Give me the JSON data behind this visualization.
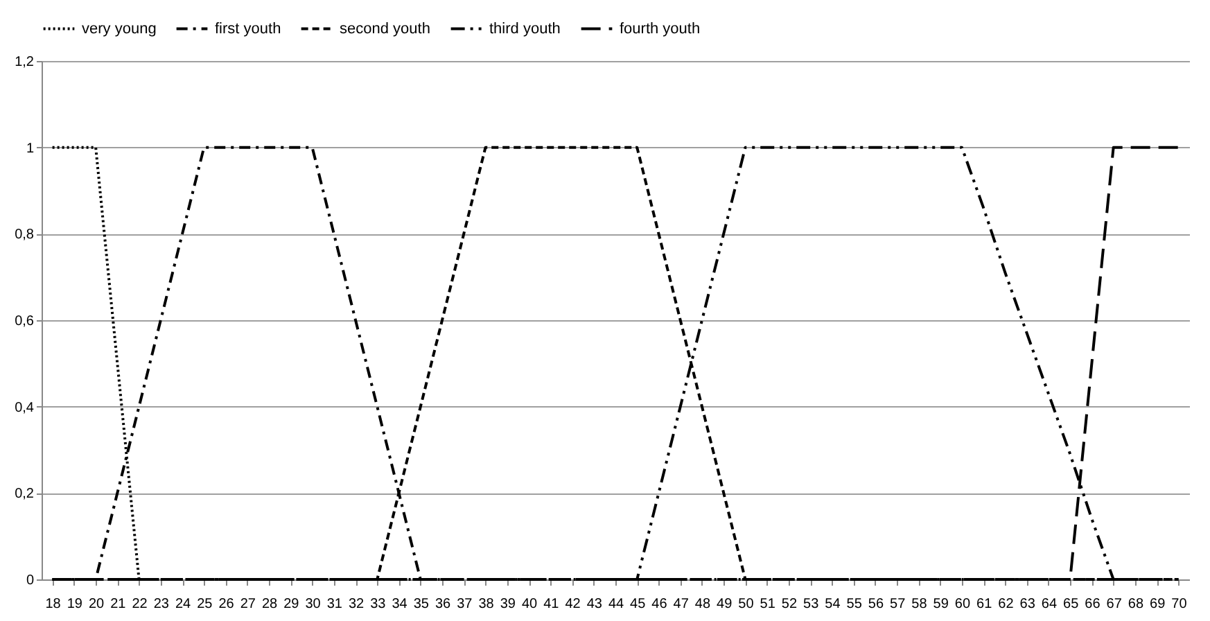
{
  "chart_data": {
    "type": "line",
    "categories": [
      "18",
      "19",
      "20",
      "21",
      "22",
      "23",
      "24",
      "25",
      "26",
      "27",
      "28",
      "29",
      "30",
      "31",
      "32",
      "33",
      "34",
      "35",
      "36",
      "37",
      "38",
      "39",
      "40",
      "41",
      "42",
      "43",
      "44",
      "45",
      "46",
      "47",
      "48",
      "49",
      "50",
      "51",
      "52",
      "53",
      "54",
      "55",
      "56",
      "57",
      "58",
      "59",
      "60",
      "61",
      "62",
      "63",
      "64",
      "65",
      "66",
      "67",
      "68",
      "69",
      "70"
    ],
    "series": [
      {
        "name": "very young",
        "color": "#000000",
        "line_style": "dotted",
        "values": [
          1,
          1,
          1,
          0.5,
          0,
          0,
          0,
          0,
          0,
          0,
          0,
          0,
          0,
          0,
          0,
          0,
          0,
          0,
          0,
          0,
          0,
          0,
          0,
          0,
          0,
          0,
          0,
          0,
          0,
          0,
          0,
          0,
          0,
          0,
          0,
          0,
          0,
          0,
          0,
          0,
          0,
          0,
          0,
          0,
          0,
          0,
          0,
          0,
          0,
          0,
          0,
          0,
          0
        ]
      },
      {
        "name": "first youth",
        "color": "#000000",
        "line_style": "dashdot",
        "values": [
          0,
          0,
          0,
          0.2,
          0.4,
          0.6,
          0.8,
          1,
          1,
          1,
          1,
          1,
          1,
          0.8,
          0.6,
          0.4,
          0.2,
          0,
          0,
          0,
          0,
          0,
          0,
          0,
          0,
          0,
          0,
          0,
          0,
          0,
          0,
          0,
          0,
          0,
          0,
          0,
          0,
          0,
          0,
          0,
          0,
          0,
          0,
          0,
          0,
          0,
          0,
          0,
          0,
          0,
          0,
          0,
          0
        ]
      },
      {
        "name": "second youth",
        "color": "#000000",
        "line_style": "dashed",
        "values": [
          0,
          0,
          0,
          0,
          0,
          0,
          0,
          0,
          0,
          0,
          0,
          0,
          0,
          0,
          0,
          0,
          0.2,
          0.4,
          0.6,
          0.8,
          1,
          1,
          1,
          1,
          1,
          1,
          1,
          1,
          0.8,
          0.6,
          0.4,
          0.2,
          0,
          0,
          0,
          0,
          0,
          0,
          0,
          0,
          0,
          0,
          0,
          0,
          0,
          0,
          0,
          0,
          0,
          0,
          0,
          0,
          0
        ]
      },
      {
        "name": "third youth",
        "color": "#000000",
        "line_style": "dashdotdot",
        "values": [
          0,
          0,
          0,
          0,
          0,
          0,
          0,
          0,
          0,
          0,
          0,
          0,
          0,
          0,
          0,
          0,
          0,
          0,
          0,
          0,
          0,
          0,
          0,
          0,
          0,
          0,
          0,
          0,
          0.2,
          0.4,
          0.6,
          0.8,
          1,
          1,
          1,
          1,
          1,
          1,
          1,
          1,
          1,
          1,
          1,
          0.86,
          0.71,
          0.57,
          0.43,
          0.29,
          0.14,
          0,
          0,
          0,
          0
        ]
      },
      {
        "name": "fourth youth",
        "color": "#000000",
        "line_style": "longdash",
        "values": [
          0,
          0,
          0,
          0,
          0,
          0,
          0,
          0,
          0,
          0,
          0,
          0,
          0,
          0,
          0,
          0,
          0,
          0,
          0,
          0,
          0,
          0,
          0,
          0,
          0,
          0,
          0,
          0,
          0,
          0,
          0,
          0,
          0,
          0,
          0,
          0,
          0,
          0,
          0,
          0,
          0,
          0,
          0,
          0,
          0,
          0,
          0,
          0,
          0.5,
          1,
          1,
          1,
          1
        ]
      }
    ],
    "ylim": [
      0,
      1.2
    ],
    "yticks": [
      0,
      {
        "value": 0.2,
        "label": "0,2"
      },
      {
        "value": 0.4,
        "label": "0,4"
      },
      {
        "value": 0.6,
        "label": "0,6"
      },
      {
        "value": 0.8,
        "label": "0,8"
      },
      1,
      {
        "value": 1.2,
        "label": "1,2"
      }
    ],
    "grid": "y",
    "legend": "top",
    "marker": "none"
  }
}
